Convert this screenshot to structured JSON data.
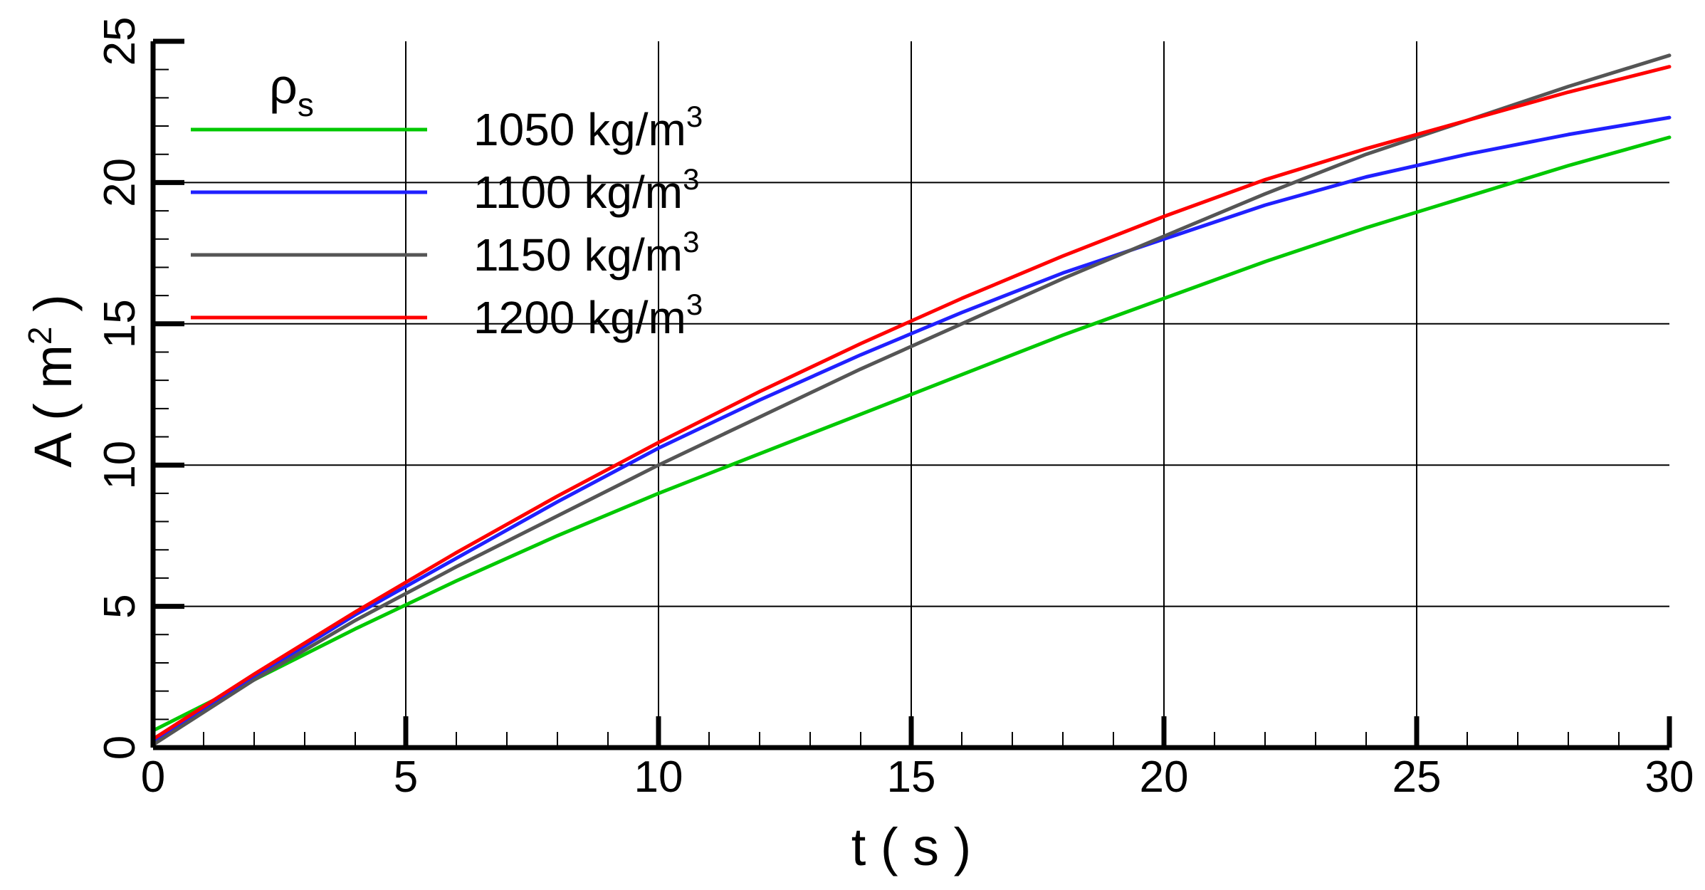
{
  "chart_data": {
    "type": "line",
    "title": "",
    "xlabel": "t ( s )",
    "ylabel_base": "A ( m",
    "ylabel_sup": "2",
    "ylabel_close": " )",
    "xlim": [
      0,
      30
    ],
    "ylim": [
      0,
      25
    ],
    "x_ticks": [
      0,
      5,
      10,
      15,
      20,
      25,
      30
    ],
    "y_ticks": [
      0,
      5,
      10,
      15,
      20,
      25
    ],
    "x_minor_step": 1,
    "y_minor_step": 1,
    "grid": true,
    "legend": {
      "title_base": "ρ",
      "title_sub": "s",
      "placement": "top-left"
    },
    "series": [
      {
        "name_base": "1050 kg/m",
        "name_sup": "3",
        "color": "#00c800",
        "x": [
          0,
          2,
          4,
          6,
          8,
          10,
          12,
          14,
          16,
          18,
          20,
          22,
          24,
          26,
          28,
          30
        ],
        "y": [
          0.6,
          2.4,
          4.2,
          5.9,
          7.5,
          9.0,
          10.4,
          11.8,
          13.2,
          14.6,
          15.9,
          17.2,
          18.4,
          19.5,
          20.6,
          21.6
        ]
      },
      {
        "name_base": "1100 kg/m",
        "name_sup": "3",
        "color": "#2020ff",
        "x": [
          0,
          2,
          4,
          6,
          8,
          10,
          12,
          14,
          16,
          18,
          20,
          22,
          24,
          26,
          28,
          30
        ],
        "y": [
          0.2,
          2.5,
          4.7,
          6.7,
          8.7,
          10.6,
          12.3,
          13.9,
          15.4,
          16.8,
          18.0,
          19.2,
          20.2,
          21.0,
          21.7,
          22.3
        ]
      },
      {
        "name_base": "1150 kg/m",
        "name_sup": "3",
        "color": "#555555",
        "x": [
          0,
          2,
          4,
          6,
          8,
          10,
          12,
          14,
          16,
          18,
          20,
          22,
          24,
          26,
          28,
          30
        ],
        "y": [
          0.1,
          2.4,
          4.5,
          6.4,
          8.2,
          10.0,
          11.7,
          13.4,
          15.0,
          16.6,
          18.1,
          19.6,
          21.0,
          22.2,
          23.4,
          24.5
        ]
      },
      {
        "name_base": "1200 kg/m",
        "name_sup": "3",
        "color": "#ff0000",
        "x": [
          0,
          2,
          4,
          6,
          8,
          10,
          12,
          14,
          16,
          18,
          20,
          22,
          24,
          26,
          28,
          30
        ],
        "y": [
          0.3,
          2.6,
          4.8,
          6.9,
          8.9,
          10.8,
          12.6,
          14.3,
          15.9,
          17.4,
          18.8,
          20.1,
          21.2,
          22.2,
          23.2,
          24.1
        ]
      }
    ]
  }
}
